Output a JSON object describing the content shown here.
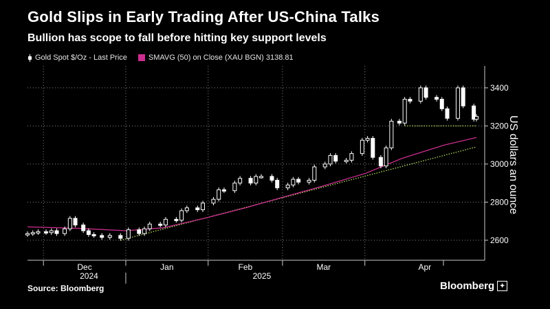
{
  "title": "Gold Slips in Early Trading After US-China Talks",
  "subtitle": "Bullion has scope to fall before hitting key support levels",
  "source": "Source: Bloomberg",
  "brand": "Bloomberg",
  "legend": {
    "gold_label": "Gold Spot $/Oz - Last Price",
    "sma_label": "SMAVG (50)  on Close (XAU BGN) 3138.81"
  },
  "colors": {
    "background": "#000000",
    "candle": "#ffffff",
    "sma": "#cc2e8f",
    "trend": "#b3e05a",
    "grid": "#888888"
  },
  "chart_data": {
    "type": "candlestick",
    "title": "Gold Slips in Early Trading After US-China Talks",
    "subtitle": "Bullion has scope to fall before hitting key support levels",
    "ylabel": "US dollars an ounce",
    "yticks": [
      2600,
      2800,
      3000,
      3200,
      3400
    ],
    "ylim": [
      2495,
      3515
    ],
    "xlim": [
      "2024-11-25",
      "2025-05-13"
    ],
    "grid": true,
    "months": [
      {
        "label": "Dec",
        "date": "2024-12-01"
      },
      {
        "label": "Jan",
        "date": "2025-01-01"
      },
      {
        "label": "Feb",
        "date": "2025-02-01"
      },
      {
        "label": "Mar",
        "date": "2025-03-01"
      },
      {
        "label": "Apr",
        "date": "2025-04-01"
      }
    ],
    "years": [
      {
        "label": "2024",
        "date": "2024-12-01"
      },
      {
        "label": "2025",
        "date": "2025-03-01"
      }
    ],
    "gold_spot_closes": [
      [
        "2024-11-25",
        2635
      ],
      [
        "2024-11-27",
        2640
      ],
      [
        "2024-11-29",
        2645
      ],
      [
        "2024-12-02",
        2640
      ],
      [
        "2024-12-04",
        2650
      ],
      [
        "2024-12-06",
        2635
      ],
      [
        "2024-12-09",
        2660
      ],
      [
        "2024-12-11",
        2715
      ],
      [
        "2024-12-13",
        2680
      ],
      [
        "2024-12-16",
        2650
      ],
      [
        "2024-12-18",
        2630
      ],
      [
        "2024-12-20",
        2625
      ],
      [
        "2024-12-23",
        2615
      ],
      [
        "2024-12-26",
        2625
      ],
      [
        "2024-12-30",
        2610
      ],
      [
        "2025-01-02",
        2655
      ],
      [
        "2025-01-06",
        2635
      ],
      [
        "2025-01-08",
        2660
      ],
      [
        "2025-01-10",
        2685
      ],
      [
        "2025-01-14",
        2680
      ],
      [
        "2025-01-16",
        2710
      ],
      [
        "2025-01-20",
        2705
      ],
      [
        "2025-01-22",
        2755
      ],
      [
        "2025-01-24",
        2770
      ],
      [
        "2025-01-28",
        2760
      ],
      [
        "2025-01-30",
        2795
      ],
      [
        "2025-02-03",
        2815
      ],
      [
        "2025-02-05",
        2865
      ],
      [
        "2025-02-07",
        2860
      ],
      [
        "2025-02-11",
        2900
      ],
      [
        "2025-02-13",
        2925
      ],
      [
        "2025-02-17",
        2900
      ],
      [
        "2025-02-19",
        2935
      ],
      [
        "2025-02-21",
        2935
      ],
      [
        "2025-02-25",
        2915
      ],
      [
        "2025-02-27",
        2875
      ],
      [
        "2025-03-03",
        2890
      ],
      [
        "2025-03-05",
        2920
      ],
      [
        "2025-03-07",
        2905
      ],
      [
        "2025-03-11",
        2915
      ],
      [
        "2025-03-13",
        2985
      ],
      [
        "2025-03-17",
        3000
      ],
      [
        "2025-03-19",
        3045
      ],
      [
        "2025-03-21",
        3015
      ],
      [
        "2025-03-25",
        3020
      ],
      [
        "2025-03-27",
        3055
      ],
      [
        "2025-03-31",
        3125
      ],
      [
        "2025-04-02",
        3135
      ],
      [
        "2025-04-04",
        3035
      ],
      [
        "2025-04-07",
        2990
      ],
      [
        "2025-04-09",
        3085
      ],
      [
        "2025-04-11",
        3225
      ],
      [
        "2025-04-14",
        3215
      ],
      [
        "2025-04-16",
        3340
      ],
      [
        "2025-04-18",
        3330
      ],
      [
        "2025-04-22",
        3400
      ],
      [
        "2025-04-24",
        3350
      ],
      [
        "2025-04-28",
        3340
      ],
      [
        "2025-04-30",
        3290
      ],
      [
        "2025-05-02",
        3240
      ],
      [
        "2025-05-06",
        3400
      ],
      [
        "2025-05-08",
        3305
      ],
      [
        "2025-05-12",
        3235
      ],
      [
        "2025-05-13",
        3250
      ]
    ],
    "sma50": [
      [
        "2024-11-25",
        2670
      ],
      [
        "2024-12-15",
        2662
      ],
      [
        "2025-01-01",
        2650
      ],
      [
        "2025-01-15",
        2665
      ],
      [
        "2025-02-01",
        2720
      ],
      [
        "2025-02-15",
        2770
      ],
      [
        "2025-03-01",
        2825
      ],
      [
        "2025-03-15",
        2880
      ],
      [
        "2025-04-01",
        2950
      ],
      [
        "2025-04-15",
        3030
      ],
      [
        "2025-05-01",
        3100
      ],
      [
        "2025-05-13",
        3139
      ]
    ],
    "trendlines": [
      {
        "points": [
          [
            "2024-12-30",
            2600
          ],
          [
            "2025-05-13",
            3090
          ]
        ]
      },
      {
        "points": [
          [
            "2025-04-16",
            3200
          ],
          [
            "2025-05-13",
            3200
          ]
        ]
      }
    ]
  }
}
